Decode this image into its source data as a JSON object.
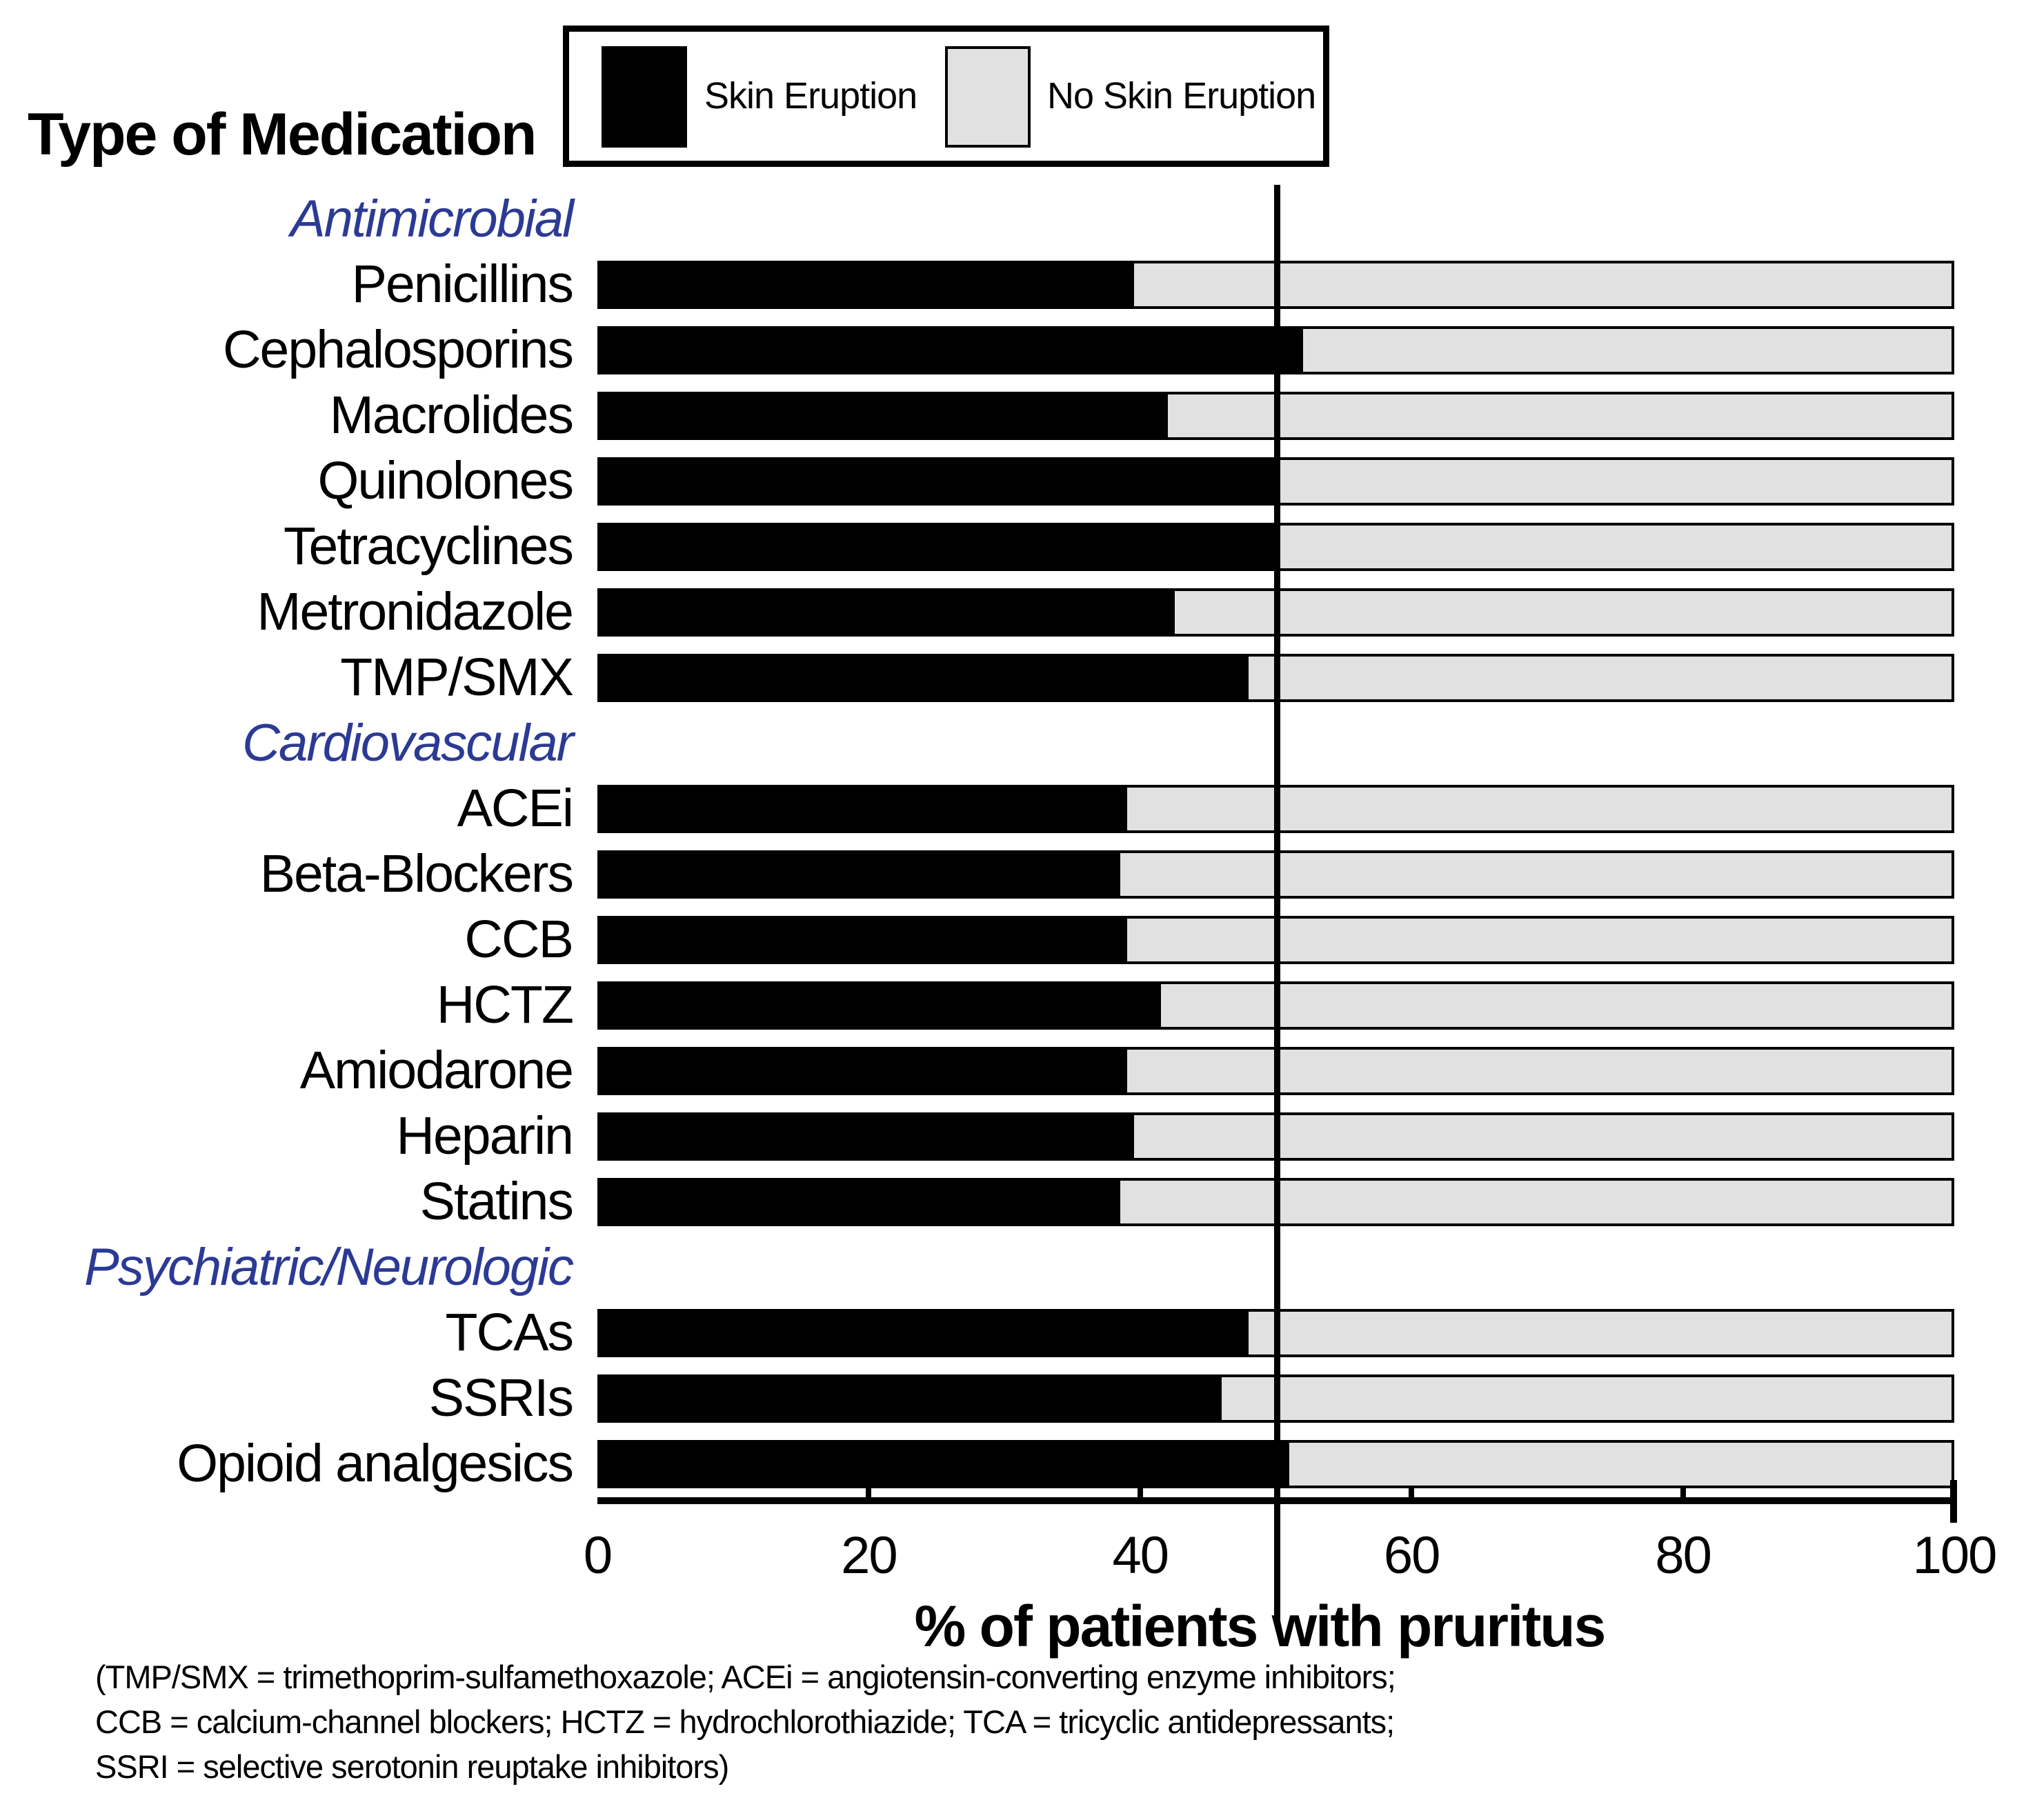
{
  "page": {
    "background": "#ffffff"
  },
  "title": "Type of Medication",
  "legend": {
    "items": [
      {
        "label": "Skin Eruption",
        "color": "#000000",
        "swatch": "black-filled-rect"
      },
      {
        "label": "No Skin Eruption",
        "color": "#e1e1e1",
        "swatch": "gray-outlined-rect"
      }
    ]
  },
  "x_axis": {
    "label": "% of patients with pruritus",
    "ticks": [
      "0",
      "20",
      "40",
      "60",
      "80",
      "100"
    ],
    "range": [
      0,
      100
    ]
  },
  "reference_line": {
    "x": 50
  },
  "colors": {
    "skin_eruption": "#000000",
    "no_skin_eruption": "#e1e1e1",
    "section_header_text": "#2b3a94",
    "bar_border": "#000000",
    "axis": "#000000"
  },
  "footnote_lines": [
    "(TMP/SMX = trimethoprim-sulfamethoxazole; ACEi = angiotensin-converting enzyme inhibitors;",
    "CCB = calcium-channel blockers; HCTZ = hydrochlorothiazide; TCA = tricyclic antidepressants;",
    "SSRI = selective serotonin reuptake inhibitors)"
  ],
  "chart_data": {
    "type": "bar",
    "orientation": "horizontal",
    "stacked": true,
    "title": "Type of Medication",
    "xlabel": "% of patients with pruritus",
    "x_range": [
      0,
      100
    ],
    "grid": false,
    "legend_position": "top",
    "reference_line_x": 50,
    "series_names": [
      "Skin Eruption",
      "No Skin Eruption"
    ],
    "groups": [
      {
        "section": "Antimicrobial",
        "rows": [
          {
            "label": "Penicillins",
            "skin_eruption_pct": 39.5,
            "no_skin_eruption_pct": 60.5
          },
          {
            "label": "Cephalosporins",
            "skin_eruption_pct": 52,
            "no_skin_eruption_pct": 48
          },
          {
            "label": "Macrolides",
            "skin_eruption_pct": 42,
            "no_skin_eruption_pct": 58
          },
          {
            "label": "Quinolones",
            "skin_eruption_pct": 50,
            "no_skin_eruption_pct": 50
          },
          {
            "label": "Tetracyclines",
            "skin_eruption_pct": 50,
            "no_skin_eruption_pct": 50
          },
          {
            "label": "Metronidazole",
            "skin_eruption_pct": 42.5,
            "no_skin_eruption_pct": 57.5
          },
          {
            "label": "TMP/SMX",
            "skin_eruption_pct": 48,
            "no_skin_eruption_pct": 52
          }
        ]
      },
      {
        "section": "Cardiovascular",
        "rows": [
          {
            "label": "ACEi",
            "skin_eruption_pct": 39,
            "no_skin_eruption_pct": 61
          },
          {
            "label": "Beta-Blockers",
            "skin_eruption_pct": 38.5,
            "no_skin_eruption_pct": 61.5
          },
          {
            "label": "CCB",
            "skin_eruption_pct": 39,
            "no_skin_eruption_pct": 61
          },
          {
            "label": "HCTZ",
            "skin_eruption_pct": 41.5,
            "no_skin_eruption_pct": 58.5
          },
          {
            "label": "Amiodarone",
            "skin_eruption_pct": 39,
            "no_skin_eruption_pct": 61
          },
          {
            "label": "Heparin",
            "skin_eruption_pct": 39.5,
            "no_skin_eruption_pct": 60.5
          },
          {
            "label": "Statins",
            "skin_eruption_pct": 38.5,
            "no_skin_eruption_pct": 61.5
          }
        ]
      },
      {
        "section": "Psychiatric/Neurologic",
        "rows": [
          {
            "label": "TCAs",
            "skin_eruption_pct": 48,
            "no_skin_eruption_pct": 52
          },
          {
            "label": "SSRIs",
            "skin_eruption_pct": 46,
            "no_skin_eruption_pct": 54
          },
          {
            "label": "Opioid analgesics",
            "skin_eruption_pct": 51,
            "no_skin_eruption_pct": 49
          }
        ]
      }
    ]
  }
}
